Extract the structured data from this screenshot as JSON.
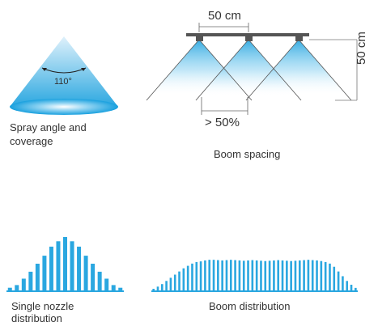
{
  "spray_angle": {
    "angle_label": "110°",
    "caption_line1": "Spray angle and",
    "caption_line2": "coverage"
  },
  "boom_spacing": {
    "spacing_label": "50 cm",
    "height_label": "50 cm",
    "overlap_label": "> 50%",
    "caption": "Boom spacing"
  },
  "single_nozzle": {
    "caption_line1": "Single nozzle",
    "caption_line2": "distribution",
    "bar_levels": [
      0.05,
      0.1,
      0.22,
      0.35,
      0.5,
      0.65,
      0.82,
      0.92,
      1.0,
      0.92,
      0.82,
      0.65,
      0.5,
      0.35,
      0.22,
      0.1,
      0.05
    ]
  },
  "boom_distribution": {
    "caption": "Boom distribution",
    "bar_levels": [
      0.05,
      0.12,
      0.2,
      0.3,
      0.4,
      0.5,
      0.6,
      0.7,
      0.78,
      0.85,
      0.9,
      0.92,
      0.95,
      0.97,
      0.97,
      0.96,
      0.95,
      0.96,
      0.97,
      0.96,
      0.95,
      0.94,
      0.95,
      0.96,
      0.95,
      0.94,
      0.93,
      0.94,
      0.95,
      0.96,
      0.95,
      0.94,
      0.93,
      0.94,
      0.95,
      0.96,
      0.97,
      0.96,
      0.95,
      0.93,
      0.9,
      0.85,
      0.75,
      0.6,
      0.45,
      0.3,
      0.18,
      0.08
    ]
  },
  "colors": {
    "spray_blue": "#2aa7e0",
    "spray_light": "#e6f5fc",
    "boom_gray": "#555555",
    "line_gray": "#888888"
  }
}
